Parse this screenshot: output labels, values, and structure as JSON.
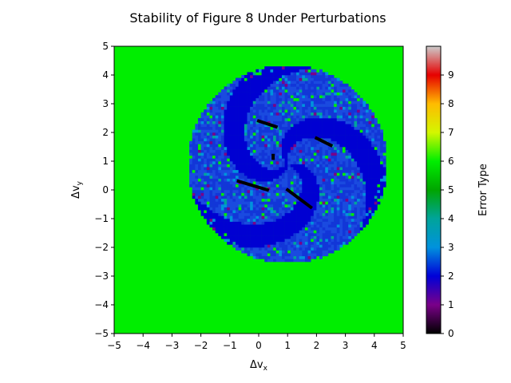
{
  "chart_data": {
    "type": "heatmap",
    "title": "Stability of Figure 8 Under Perturbations",
    "xlabel": "Δv",
    "xlabel_sub": "x",
    "ylabel": "Δv",
    "ylabel_sub": "y",
    "xlim": [
      -5,
      5
    ],
    "ylim": [
      -5,
      5
    ],
    "xticks": [
      -5,
      -4,
      -3,
      -2,
      -1,
      0,
      1,
      2,
      3,
      4,
      5
    ],
    "yticks": [
      -5,
      -4,
      -3,
      -2,
      -1,
      0,
      1,
      2,
      3,
      4,
      5
    ],
    "grid_resolution": 100,
    "grid": false,
    "background_value": 6,
    "stable_region": {
      "shape": "disc",
      "center": [
        1.0,
        0.9
      ],
      "radius": 3.45,
      "dominant_value": 2,
      "scattered_values": [
        3,
        4,
        6
      ],
      "spiral_arms": 3,
      "spiral_arm_value": 2
    },
    "black_streaks_value": 0,
    "black_streaks": [
      {
        "from": [
          0.0,
          2.4
        ],
        "to": [
          0.6,
          2.2
        ]
      },
      {
        "from": [
          2.0,
          1.8
        ],
        "to": [
          2.5,
          1.55
        ]
      },
      {
        "from": [
          -0.7,
          0.3
        ],
        "to": [
          0.3,
          0.0
        ]
      },
      {
        "from": [
          1.0,
          0.0
        ],
        "to": [
          1.8,
          -0.6
        ]
      },
      {
        "from": [
          0.5,
          1.2
        ],
        "to": [
          0.5,
          1.1
        ]
      }
    ],
    "colorbar": {
      "label": "Error Type",
      "ticks": [
        0,
        1,
        2,
        3,
        4,
        5,
        6,
        7,
        8,
        9
      ],
      "range": [
        0,
        10
      ],
      "colormap": "nipy_spectral",
      "colors": {
        "0": "#000000",
        "1": "#7a0089",
        "2": "#0000d8",
        "3": "#0092dd",
        "4": "#00a49a",
        "5": "#00a500",
        "6": "#00ee00",
        "7": "#d4f600",
        "8": "#ffbb00",
        "9": "#e60000",
        "10": "#cccccc"
      }
    }
  }
}
